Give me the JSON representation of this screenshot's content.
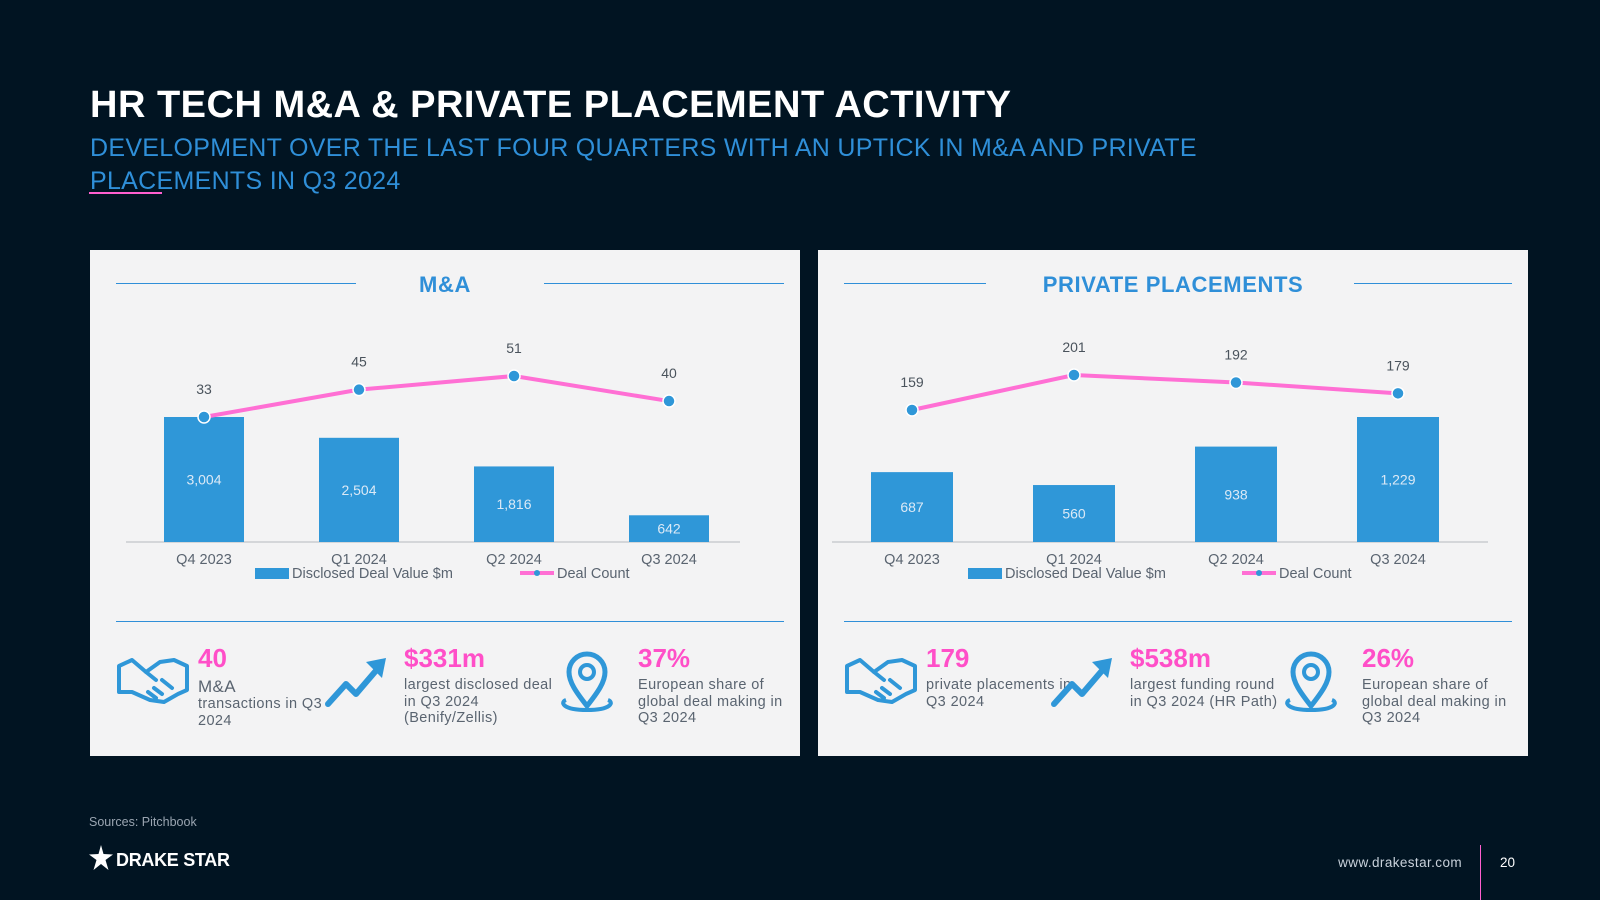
{
  "title": "HR TECH M&A & PRIVATE PLACEMENT ACTIVITY",
  "subtitle": "DEVELOPMENT OVER THE LAST FOUR QUARTERS WITH AN UPTICK IN M&A AND PRIVATE PLACEMENTS IN Q3 2024",
  "colors": {
    "background": "#011422",
    "bar": "#2f97d8",
    "line": "#ff6fd4",
    "accent": "#ff4fc8",
    "heading": "#2f8fd8"
  },
  "chart_data": [
    {
      "type": "bar",
      "title": "M&A",
      "categories": [
        "Q4 2023",
        "Q1 2024",
        "Q2 2024",
        "Q3 2024"
      ],
      "series": [
        {
          "name": "Disclosed Deal Value $m",
          "type": "bar",
          "values": [
            3004,
            2504,
            1816,
            642
          ],
          "labels": [
            "3,004",
            "2,504",
            "1,816",
            "642"
          ]
        },
        {
          "name": "Deal Count",
          "type": "line",
          "values": [
            33,
            45,
            51,
            40
          ],
          "labels": [
            "33",
            "45",
            "51",
            "40"
          ]
        }
      ],
      "legend": "bottom"
    },
    {
      "type": "bar",
      "title": "PRIVATE PLACEMENTS",
      "categories": [
        "Q4 2023",
        "Q1 2024",
        "Q2 2024",
        "Q3 2024"
      ],
      "series": [
        {
          "name": "Disclosed Deal Value $m",
          "type": "bar",
          "values": [
            687,
            560,
            938,
            1229
          ],
          "labels": [
            "687",
            "560",
            "938",
            "1,229"
          ]
        },
        {
          "name": "Deal Count",
          "type": "line",
          "values": [
            159,
            201,
            192,
            179
          ],
          "labels": [
            "159",
            "201",
            "192",
            "179"
          ]
        }
      ],
      "legend": "bottom"
    }
  ],
  "ma_stats": [
    {
      "icon": "handshake-icon",
      "value": "40",
      "desc": "M&A",
      "desc2": "transactions in Q3 2024"
    },
    {
      "icon": "trend-up-icon",
      "value": "$331m",
      "desc": "largest disclosed deal in Q3 2024 (Benify/Zellis)"
    },
    {
      "icon": "location-pin-icon",
      "value": "37%",
      "desc": "European share of global deal making in Q3 2024"
    }
  ],
  "pp_stats": [
    {
      "icon": "handshake-icon",
      "value": "179",
      "desc": "private placements in Q3 2024"
    },
    {
      "icon": "trend-up-icon",
      "value": "$538m",
      "desc": "largest funding round in Q3 2024 (HR Path)"
    },
    {
      "icon": "location-pin-icon",
      "value": "26%",
      "desc": "European share of global deal making in Q3 2024"
    }
  ],
  "footer": {
    "sources": "Sources: Pitchbook",
    "logo": "DRAKE STAR",
    "website": "www.drakestar.com",
    "page": "20"
  }
}
